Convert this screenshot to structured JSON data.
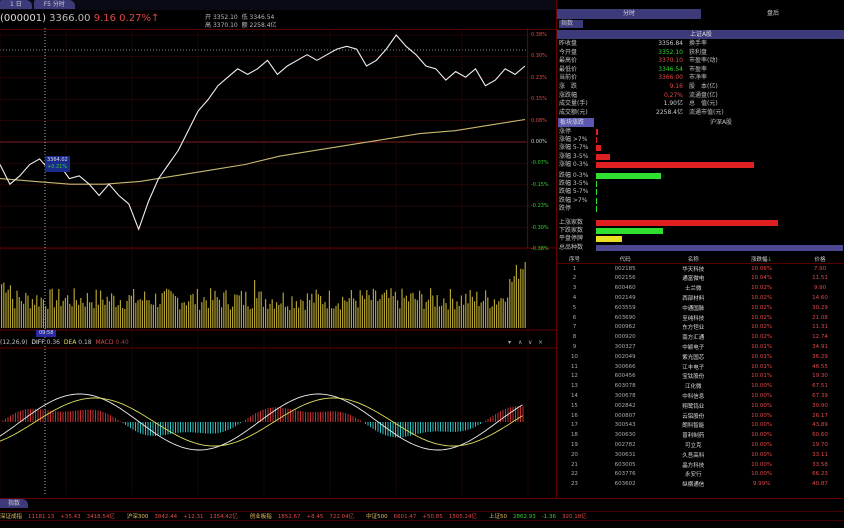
{
  "tabs": [
    "1 日",
    "F5 分时"
  ],
  "header": {
    "code": "(000001)",
    "price": "3366.00",
    "change": "9.16",
    "change_pct": "0.27%",
    "arrow": "↑",
    "open_label": "开",
    "open": "3352.10",
    "low_label": "低",
    "low": "3346.54",
    "high_label": "高",
    "high": "3370.10",
    "amount_label": "额",
    "amount": "2258.4亿"
  },
  "axis_right": [
    "0.38%",
    "0.30%",
    "0.23%",
    "0.15%",
    "0.08%",
    "0.00%",
    "-0.07%",
    "-0.15%",
    "-0.23%",
    "-0.30%",
    "-0.38%"
  ],
  "crosshair": {
    "time": "09:58",
    "price": "3364.02",
    "pct": "+0.21%"
  },
  "intraday": {
    "change_pct": [
      -0.08,
      -0.15,
      -0.12,
      -0.08,
      -0.06,
      -0.1,
      -0.08,
      -0.13,
      -0.12,
      -0.15,
      -0.19,
      -0.15,
      -0.19,
      -0.22,
      -0.31,
      -0.21,
      -0.13,
      -0.08,
      -0.03,
      0.04,
      0.11,
      0.15,
      0.2,
      0.23,
      0.26,
      0.24,
      0.26,
      0.29,
      0.24,
      0.27,
      0.29,
      0.31,
      0.29,
      0.31,
      0.33,
      0.34,
      0.33,
      0.27,
      0.29,
      0.33,
      0.38,
      0.34,
      0.31,
      0.27,
      0.26,
      0.22,
      0.25,
      0.23,
      0.26,
      0.2,
      0.22,
      0.26,
      0.24,
      0.27
    ],
    "avg_pct": [
      -0.13,
      -0.14,
      -0.15,
      -0.15,
      -0.14,
      -0.12,
      -0.1,
      -0.08,
      -0.05,
      -0.03,
      -0.01,
      0.01,
      0.03,
      0.04,
      0.06,
      0.08
    ]
  },
  "macd": {
    "params": "(12,26,9)",
    "diff_label": "DIFF",
    "diff": "0.36",
    "dea_label": "DEA",
    "dea": "0.18",
    "macd_label": "MACD",
    "macd": "0.40"
  },
  "right": {
    "tabs": [
      "分时",
      "盘后"
    ],
    "sub_tab": "指数",
    "market": "上证A股",
    "info": [
      {
        "l": "昨收盘",
        "v": "3356.84",
        "c": "#ccc",
        "l2": "换手率"
      },
      {
        "l": "今开盘",
        "v": "3352.10",
        "c": "#30d030",
        "l2": "获利盘"
      },
      {
        "l": "最高价",
        "v": "3370.10",
        "c": "#e04848",
        "l2": "市盈率(动)"
      },
      {
        "l": "最低价",
        "v": "3346.54",
        "c": "#30d030",
        "l2": "市盈率"
      },
      {
        "l": "当前价",
        "v": "3366.00",
        "c": "#e04848",
        "l2": "市净率"
      },
      {
        "l": "涨　跌",
        "v": "9.16",
        "c": "#e04848",
        "l2": "股　本(亿)"
      },
      {
        "l": "涨跌幅",
        "v": "0.27%",
        "c": "#e04848",
        "l2": "流通盘(亿)"
      },
      {
        "l": "成交量(手)",
        "v": "1.90亿",
        "c": "#ccc",
        "l2": "总　值(元)"
      },
      {
        "l": "成交额(元)",
        "v": "2258.4亿",
        "c": "#ccc",
        "l2": "流通市值(元)"
      }
    ],
    "breadth_tab": "板块涨跌",
    "breadth_market": "沪深A股",
    "breadth": [
      {
        "l": "涨停",
        "f": 0.01,
        "c": "#e02020"
      },
      {
        "l": "涨幅 >7%",
        "f": 0.003,
        "c": "#e02020"
      },
      {
        "l": "涨幅 5-7%",
        "f": 0.02,
        "c": "#e02020"
      },
      {
        "l": "涨幅 3-5%",
        "f": 0.06,
        "c": "#e02020"
      },
      {
        "l": "涨幅 0-3%",
        "f": 0.66,
        "c": "#e02020"
      },
      {
        "l": "跌幅 0-3%",
        "f": 0.27,
        "c": "#30e030"
      },
      {
        "l": "跌幅 3-5%",
        "f": 0.003,
        "c": "#30e030"
      },
      {
        "l": "跌幅 5-7%",
        "f": 0.002,
        "c": "#30e030"
      },
      {
        "l": "跌幅 >7%",
        "f": 0.002,
        "c": "#30e030"
      },
      {
        "l": "跌停",
        "f": 0.002,
        "c": "#30e030"
      },
      {
        "l": "上涨家数",
        "f": 0.76,
        "c": "#e02020"
      },
      {
        "l": "下跌家数",
        "f": 0.28,
        "c": "#30e030"
      },
      {
        "l": "平盘停牌",
        "f": 0.11,
        "c": "#e8e020"
      },
      {
        "l": "总品种数",
        "f": 1.0,
        "c": "#4a4890"
      }
    ],
    "columns": [
      "序号",
      "代码",
      "名称",
      "涨跌幅",
      "价格"
    ],
    "sort_icon": "arrow-down-icon",
    "rows": [
      [
        "1",
        "002185",
        "华天科技",
        "10.06%",
        "7.90"
      ],
      [
        "2",
        "002156",
        "通富微电",
        "10.04%",
        "11.51"
      ],
      [
        "3",
        "600460",
        "士兰微",
        "10.02%",
        "9.90"
      ],
      [
        "4",
        "002149",
        "西部材料",
        "10.02%",
        "14.60"
      ],
      [
        "5",
        "603559",
        "中通国脉",
        "10.02%",
        "30.29"
      ],
      [
        "6",
        "603690",
        "至纯科技",
        "10.02%",
        "21.08"
      ],
      [
        "7",
        "000962",
        "东方钽业",
        "10.02%",
        "11.31"
      ],
      [
        "8",
        "000920",
        "南方汇通",
        "10.02%",
        "12.74"
      ],
      [
        "9",
        "300327",
        "中颖电子",
        "10.01%",
        "34.91"
      ],
      [
        "10",
        "002049",
        "紫光国芯",
        "10.01%",
        "36.29"
      ],
      [
        "11",
        "300666",
        "江丰电子",
        "10.01%",
        "46.55"
      ],
      [
        "12",
        "600456",
        "宝钛股份",
        "10.01%",
        "19.30"
      ],
      [
        "13",
        "603078",
        "江化微",
        "10.00%",
        "67.51"
      ],
      [
        "14",
        "300678",
        "中科信息",
        "10.00%",
        "67.39"
      ],
      [
        "15",
        "002842",
        "翔鹭钨业",
        "10.00%",
        "30.90"
      ],
      [
        "16",
        "000807",
        "云铝股份",
        "10.00%",
        "26.17"
      ],
      [
        "17",
        "300543",
        "朗科智能",
        "10.00%",
        "43.89"
      ],
      [
        "18",
        "300630",
        "普利制药",
        "10.00%",
        "60.60"
      ],
      [
        "19",
        "002782",
        "可立克",
        "10.00%",
        "19.70"
      ],
      [
        "20",
        "300631",
        "久吾高科",
        "10.00%",
        "33.11"
      ],
      [
        "21",
        "603005",
        "晶方科技",
        "10.00%",
        "33.58"
      ],
      [
        "22",
        "603776",
        "永安行",
        "10.00%",
        "66.23"
      ],
      [
        "23",
        "603602",
        "纵横通信",
        "9.99%",
        "40.87"
      ]
    ]
  },
  "bottom": {
    "tab": "指数",
    "ticker": [
      {
        "n": "深证成指",
        "v": "11181.13",
        "d": "+35.43",
        "a": "3418.54亿",
        "up": true
      },
      {
        "n": "沪深300",
        "v": "3842.44",
        "d": "+12.31",
        "a": "1354.42亿",
        "up": true
      },
      {
        "n": "创业板指",
        "v": "1852.67",
        "d": "+8.45",
        "a": "722.04亿",
        "up": true
      },
      {
        "n": "中证500",
        "v": "6601.47",
        "d": "+50.85",
        "a": "1505.24亿",
        "up": true
      },
      {
        "n": "上证50",
        "v": "2862.93",
        "d": "-1.36",
        "a": "320.18亿",
        "up": false
      }
    ]
  }
}
